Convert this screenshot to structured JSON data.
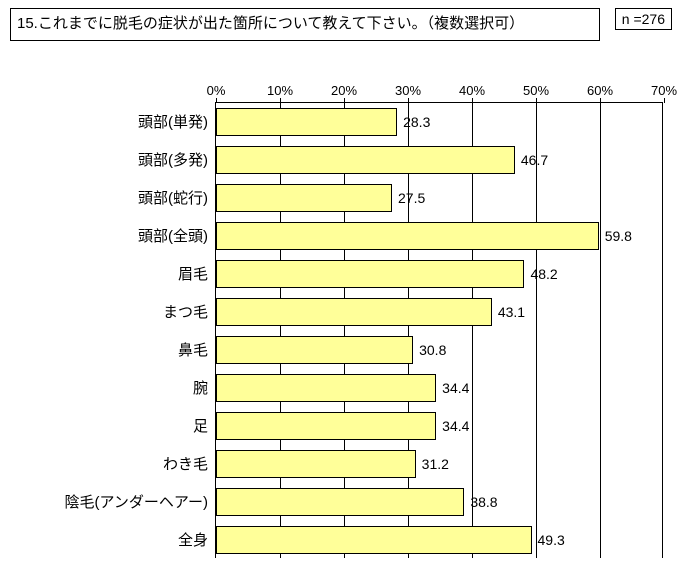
{
  "title": "15.これまでに脱毛の症状が出た箇所について教えて下さい。（複数選択可）",
  "n_label": "n =276",
  "chart": {
    "type": "bar-horizontal",
    "x_axis": {
      "min": 0,
      "max": 70,
      "tick_step": 10,
      "ticks": [
        "0%",
        "10%",
        "20%",
        "30%",
        "40%",
        "50%",
        "60%",
        "70%"
      ]
    },
    "bar_color": "#ffff99",
    "bar_border": "#000000",
    "grid_color": "#000000",
    "background_color": "#ffffff",
    "label_fontsize": 15,
    "value_fontsize": 14,
    "tick_fontsize": 13,
    "categories": [
      {
        "label": "頭部(単発)",
        "value": 28.3
      },
      {
        "label": "頭部(多発)",
        "value": 46.7
      },
      {
        "label": "頭部(蛇行)",
        "value": 27.5
      },
      {
        "label": "頭部(全頭)",
        "value": 59.8
      },
      {
        "label": "眉毛",
        "value": 48.2
      },
      {
        "label": "まつ毛",
        "value": 43.1
      },
      {
        "label": "鼻毛",
        "value": 30.8
      },
      {
        "label": "腕",
        "value": 34.4
      },
      {
        "label": "足",
        "value": 34.4
      },
      {
        "label": "わき毛",
        "value": 31.2
      },
      {
        "label": "陰毛(アンダーヘアー)",
        "value": 38.8
      },
      {
        "label": "全身",
        "value": 49.3
      }
    ]
  }
}
